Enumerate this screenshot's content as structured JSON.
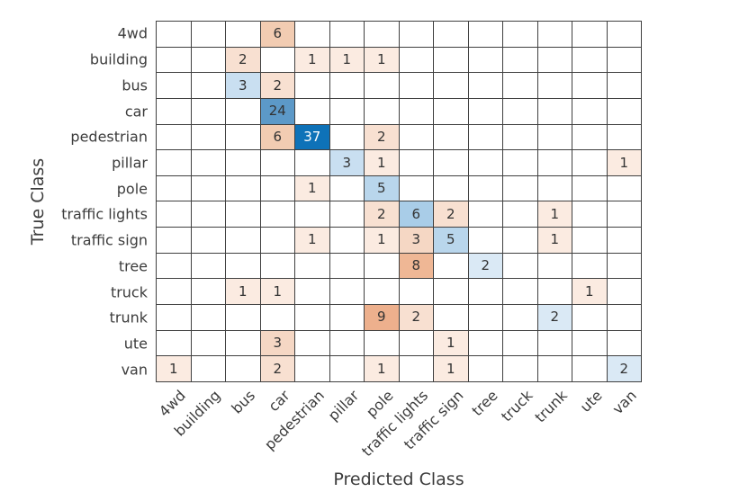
{
  "chart_data": {
    "type": "heatmap",
    "subtype": "confusion-matrix",
    "xlabel": "Predicted Class",
    "ylabel": "True Class",
    "classes": [
      "4wd",
      "building",
      "bus",
      "car",
      "pedestrian",
      "pillar",
      "pole",
      "traffic lights",
      "traffic sign",
      "tree",
      "truck",
      "trunk",
      "ute",
      "van"
    ],
    "matrix": [
      [
        0,
        0,
        0,
        6,
        0,
        0,
        0,
        0,
        0,
        0,
        0,
        0,
        0,
        0
      ],
      [
        0,
        0,
        2,
        0,
        1,
        1,
        1,
        0,
        0,
        0,
        0,
        0,
        0,
        0
      ],
      [
        0,
        0,
        3,
        2,
        0,
        0,
        0,
        0,
        0,
        0,
        0,
        0,
        0,
        0
      ],
      [
        0,
        0,
        0,
        24,
        0,
        0,
        0,
        0,
        0,
        0,
        0,
        0,
        0,
        0
      ],
      [
        0,
        0,
        0,
        6,
        37,
        0,
        2,
        0,
        0,
        0,
        0,
        0,
        0,
        0
      ],
      [
        0,
        0,
        0,
        0,
        0,
        3,
        1,
        0,
        0,
        0,
        0,
        0,
        0,
        1
      ],
      [
        0,
        0,
        0,
        0,
        1,
        0,
        5,
        0,
        0,
        0,
        0,
        0,
        0,
        0
      ],
      [
        0,
        0,
        0,
        0,
        0,
        0,
        2,
        6,
        2,
        0,
        0,
        1,
        0,
        0
      ],
      [
        0,
        0,
        0,
        0,
        1,
        0,
        1,
        3,
        5,
        0,
        0,
        1,
        0,
        0
      ],
      [
        0,
        0,
        0,
        0,
        0,
        0,
        0,
        8,
        0,
        2,
        0,
        0,
        0,
        0
      ],
      [
        0,
        0,
        1,
        1,
        0,
        0,
        0,
        0,
        0,
        0,
        0,
        0,
        1,
        0
      ],
      [
        0,
        0,
        0,
        0,
        0,
        0,
        9,
        2,
        0,
        0,
        0,
        2,
        0,
        0
      ],
      [
        0,
        0,
        0,
        3,
        0,
        0,
        0,
        0,
        1,
        0,
        0,
        0,
        0,
        0
      ],
      [
        1,
        0,
        0,
        2,
        0,
        0,
        1,
        0,
        1,
        0,
        0,
        0,
        0,
        2
      ]
    ],
    "grid": "on",
    "legend": "off",
    "colors": {
      "diagonal_scale": {
        "2": "#DAE9F5",
        "3": "#C9DFF1",
        "5": "#B9D6EC",
        "6": "#A9CDE8",
        "24": "#5C99C8",
        "37": "#0E72B8"
      },
      "off_diagonal_scale": {
        "1": "#FBEBE1",
        "2": "#F8E0D1",
        "3": "#F5D7C4",
        "6": "#F2CCB2",
        "8": "#EFB795",
        "9": "#EDB08D"
      },
      "grid_line": "#404040",
      "label_text": "#3C3C3C",
      "cell_text": "#333333",
      "cell_text_light": "#FFFFFF",
      "background": "#FFFFFF"
    },
    "white_text_min_value": 30
  }
}
